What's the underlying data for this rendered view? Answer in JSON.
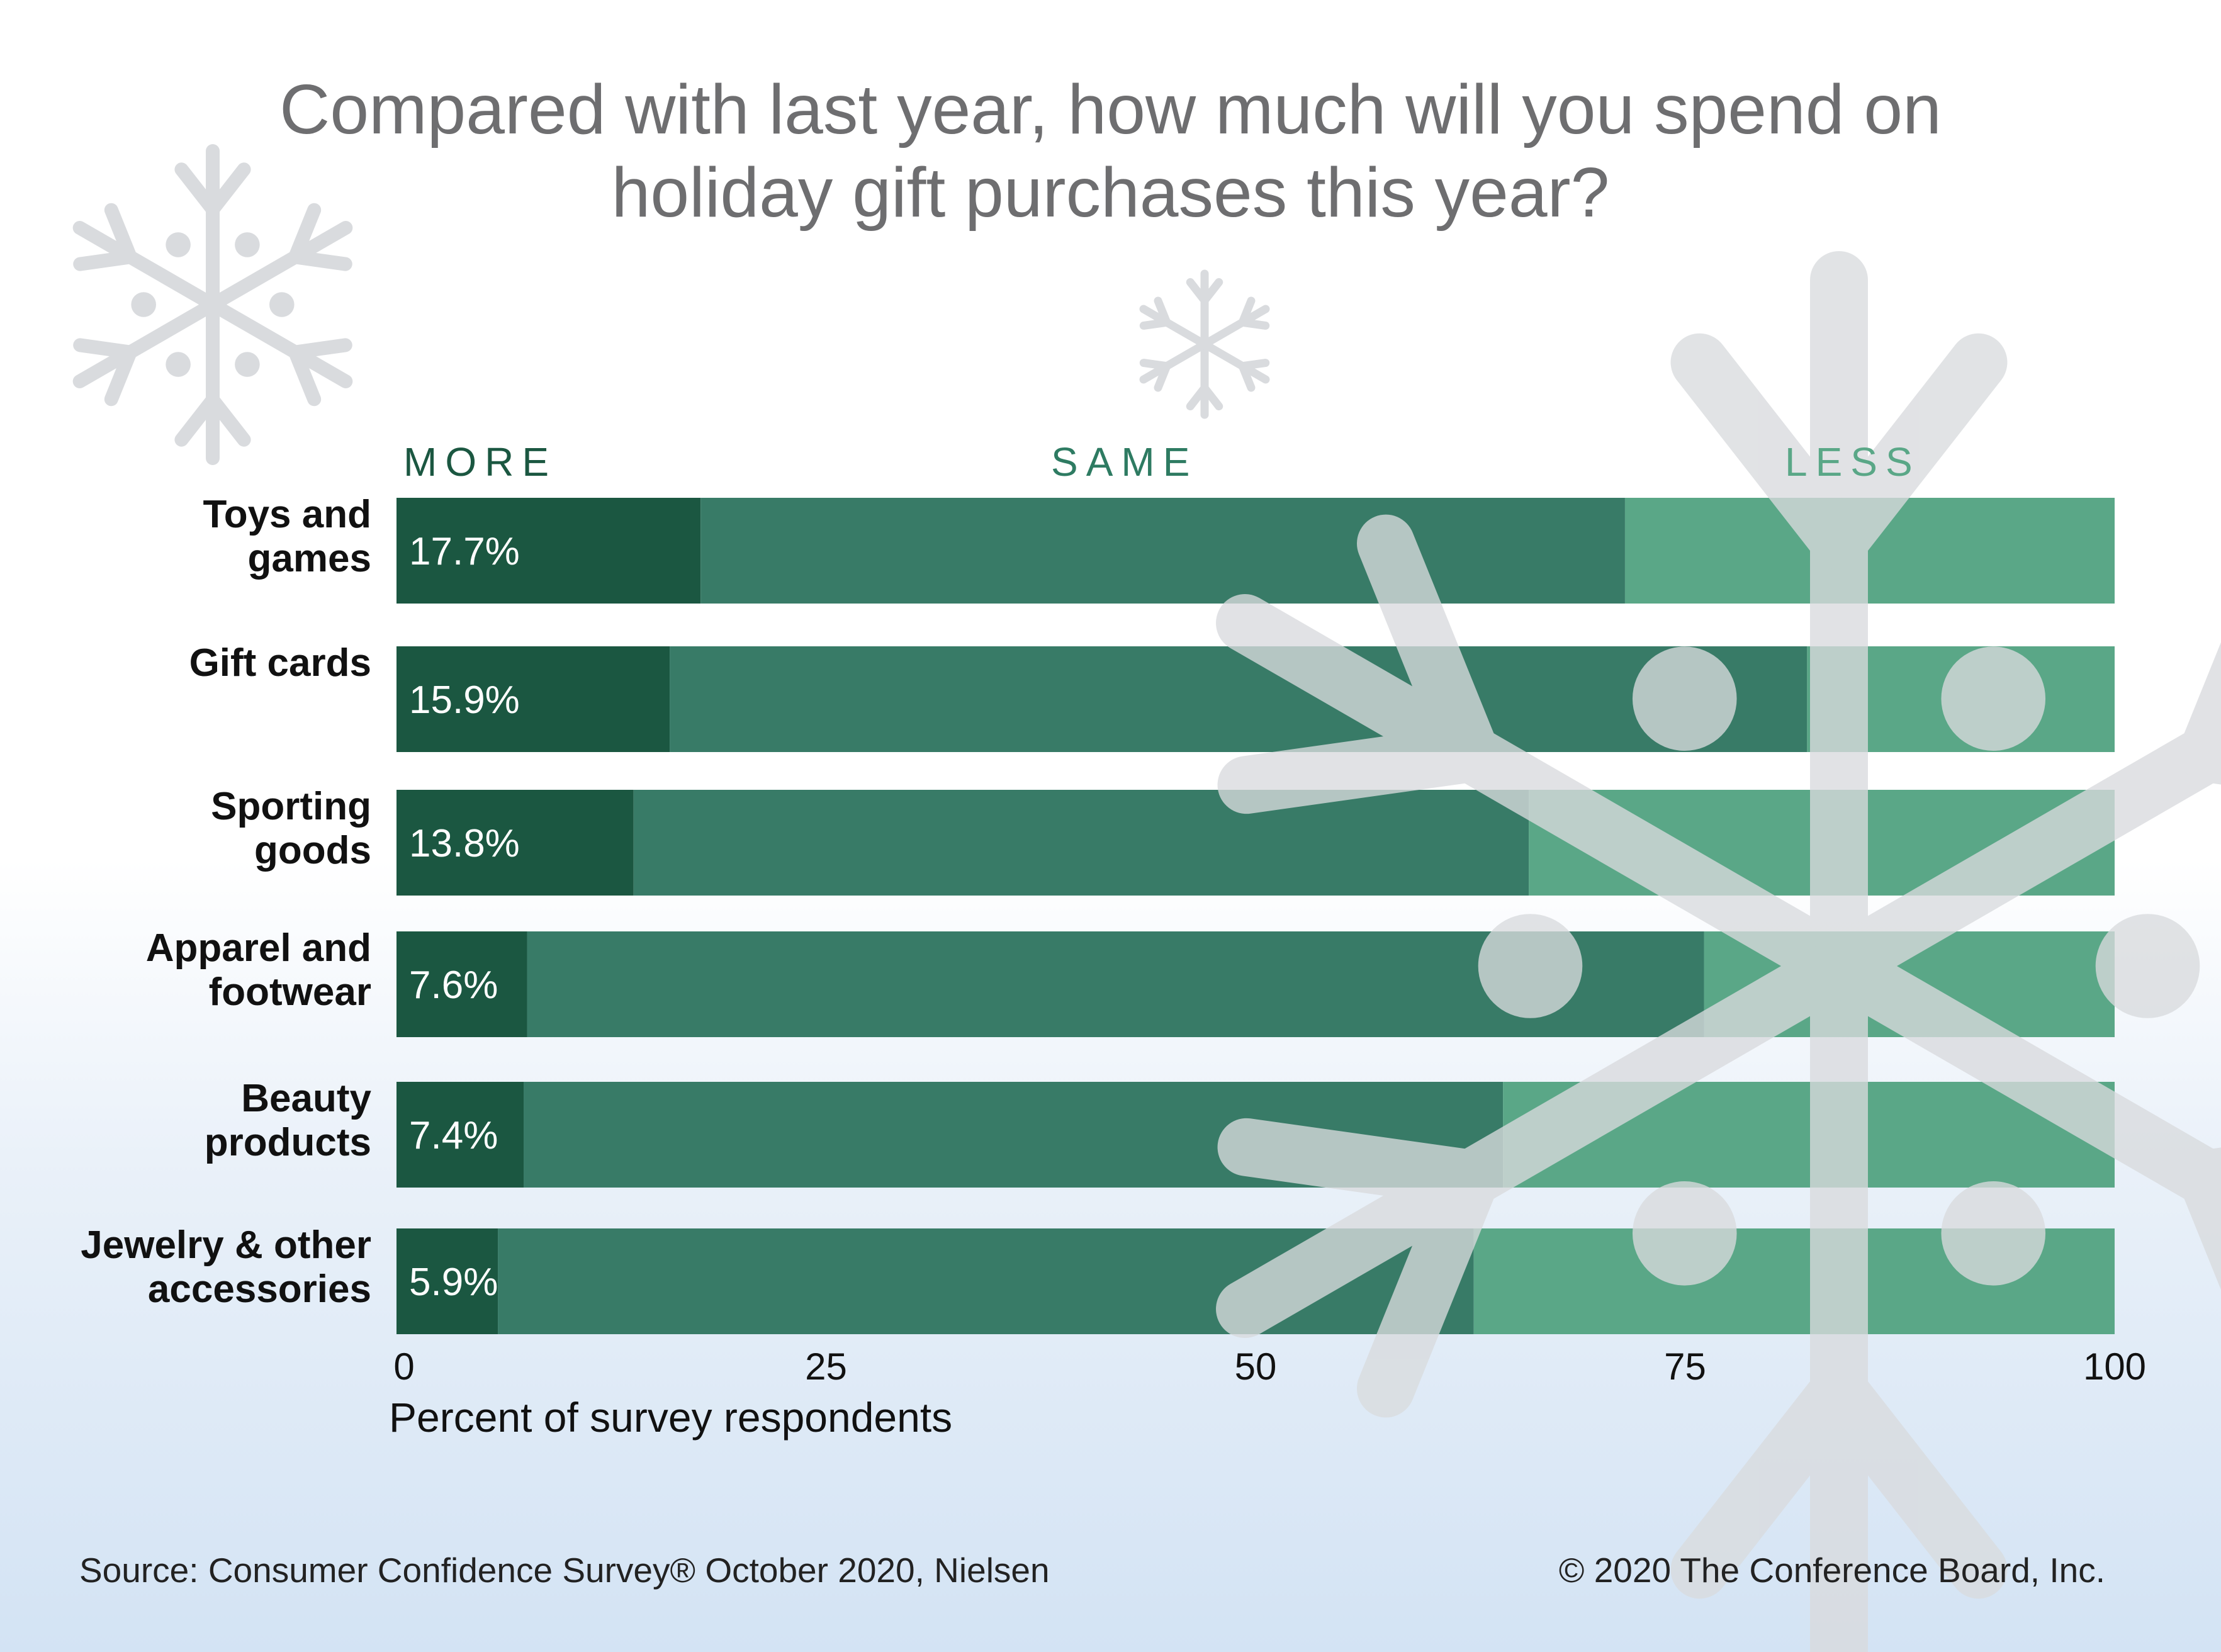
{
  "title_lines": [
    "Compared with last year, how much will you spend on",
    "holiday gift purchases this year?"
  ],
  "legend": {
    "more": "MORE",
    "same": "SAME",
    "less": "LESS"
  },
  "colors": {
    "more": "#1b5741",
    "same": "#387b67",
    "less": "#5aa787",
    "snowflake": "#d9dbde"
  },
  "chart_data": {
    "type": "bar",
    "orientation": "horizontal",
    "stacked": true,
    "xlabel": "Percent of survey respondents",
    "xlim": [
      0,
      100
    ],
    "xticks": [
      0,
      25,
      50,
      75,
      100
    ],
    "categories": [
      [
        "Toys and",
        "games"
      ],
      [
        "Gift cards"
      ],
      [
        "Sporting",
        "goods"
      ],
      [
        "Apparel and",
        "footwear"
      ],
      [
        "Beauty",
        "products"
      ],
      [
        "Jewelry & other",
        "accessories"
      ]
    ],
    "series": [
      {
        "name": "MORE",
        "values": [
          17.7,
          15.9,
          13.8,
          7.6,
          7.4,
          5.9
        ],
        "labels": [
          "17.7%",
          "15.9%",
          "13.8%",
          "7.6%",
          "7.4%",
          "5.9%"
        ]
      },
      {
        "name": "SAME",
        "values": [
          53.8,
          66.2,
          52.1,
          68.5,
          57.0,
          56.8
        ]
      },
      {
        "name": "LESS",
        "values": [
          28.5,
          17.9,
          34.1,
          23.9,
          35.6,
          37.3
        ]
      }
    ],
    "legend_position": "top"
  },
  "footer": {
    "source": "Source: Consumer Confidence Survey® October 2020, Nielsen",
    "copyright": "© 2020 The Conference Board, Inc."
  }
}
